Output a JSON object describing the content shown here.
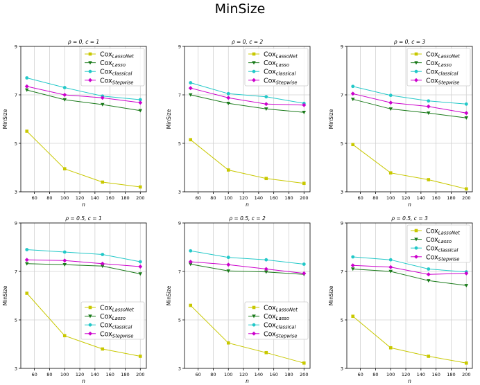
{
  "figure_title": "MinSize",
  "colors": {
    "Cox_LassoNet": "#c8c800",
    "Cox_Lasso": "#1a7a1a",
    "Cox_classical": "#22c8c8",
    "Cox_Stepwise": "#cc00cc"
  },
  "chart_data": [
    {
      "type": "line",
      "title": "ρ = 0, c = 1",
      "xlabel": "n",
      "ylabel": "MinSize",
      "xlim": [
        42,
        208
      ],
      "ylim": [
        3,
        9
      ],
      "xticks": [
        60,
        80,
        100,
        120,
        140,
        160,
        180,
        200
      ],
      "yticks": [
        3,
        5,
        7,
        9
      ],
      "grid": true,
      "legend_position": "upper right",
      "x": [
        50,
        100,
        150,
        200
      ],
      "series": [
        {
          "name": "Cox_LassoNet",
          "values": [
            5.5,
            3.95,
            3.4,
            3.2
          ]
        },
        {
          "name": "Cox_Lasso",
          "values": [
            7.2,
            6.8,
            6.6,
            6.35
          ]
        },
        {
          "name": "Cox_classical",
          "values": [
            7.7,
            7.3,
            6.95,
            6.8
          ]
        },
        {
          "name": "Cox_Stepwise",
          "values": [
            7.35,
            7.0,
            6.88,
            6.68
          ]
        }
      ]
    },
    {
      "type": "line",
      "title": "ρ = 0, c = 2",
      "xlabel": "n",
      "ylabel": "MinSize",
      "xlim": [
        42,
        208
      ],
      "ylim": [
        3,
        9
      ],
      "xticks": [
        60,
        80,
        100,
        120,
        140,
        160,
        180,
        200
      ],
      "yticks": [
        3,
        5,
        7,
        9
      ],
      "grid": true,
      "legend_position": "upper right",
      "x": [
        50,
        100,
        150,
        200
      ],
      "series": [
        {
          "name": "Cox_LassoNet",
          "values": [
            5.15,
            3.9,
            3.55,
            3.35
          ]
        },
        {
          "name": "Cox_Lasso",
          "values": [
            7.0,
            6.65,
            6.42,
            6.28
          ]
        },
        {
          "name": "Cox_classical",
          "values": [
            7.5,
            7.05,
            6.92,
            6.65
          ]
        },
        {
          "name": "Cox_Stepwise",
          "values": [
            7.28,
            6.88,
            6.62,
            6.58
          ]
        }
      ]
    },
    {
      "type": "line",
      "title": "ρ = 0, c = 3",
      "xlabel": "n",
      "ylabel": "MinSize",
      "xlim": [
        42,
        208
      ],
      "ylim": [
        3,
        9
      ],
      "xticks": [
        60,
        80,
        100,
        120,
        140,
        160,
        180,
        200
      ],
      "yticks": [
        3,
        5,
        7,
        9
      ],
      "grid": true,
      "legend_position": "upper right",
      "x": [
        50,
        100,
        150,
        200
      ],
      "series": [
        {
          "name": "Cox_LassoNet",
          "values": [
            4.95,
            3.78,
            3.5,
            3.12
          ]
        },
        {
          "name": "Cox_Lasso",
          "values": [
            6.82,
            6.42,
            6.25,
            6.05
          ]
        },
        {
          "name": "Cox_classical",
          "values": [
            7.35,
            6.98,
            6.75,
            6.62
          ]
        },
        {
          "name": "Cox_Stepwise",
          "values": [
            7.05,
            6.68,
            6.52,
            6.25
          ]
        }
      ]
    },
    {
      "type": "line",
      "title": "ρ = 0.5, c = 1",
      "xlabel": "n",
      "ylabel": "MinSize",
      "xlim": [
        42,
        208
      ],
      "ylim": [
        3,
        9
      ],
      "xticks": [
        60,
        80,
        100,
        120,
        140,
        160,
        180,
        200
      ],
      "yticks": [
        3,
        5,
        7,
        9
      ],
      "grid": true,
      "legend_position": "lower right",
      "x": [
        50,
        100,
        150,
        200
      ],
      "series": [
        {
          "name": "Cox_LassoNet",
          "values": [
            6.1,
            4.35,
            3.8,
            3.5
          ]
        },
        {
          "name": "Cox_Lasso",
          "values": [
            7.32,
            7.28,
            7.22,
            6.9
          ]
        },
        {
          "name": "Cox_classical",
          "values": [
            7.9,
            7.8,
            7.7,
            7.4
          ]
        },
        {
          "name": "Cox_Stepwise",
          "values": [
            7.48,
            7.45,
            7.32,
            7.2
          ]
        }
      ]
    },
    {
      "type": "line",
      "title": "ρ = 0.5, c = 2",
      "xlabel": "n",
      "ylabel": "MinSize",
      "xlim": [
        42,
        208
      ],
      "ylim": [
        3,
        9
      ],
      "xticks": [
        60,
        80,
        100,
        120,
        140,
        160,
        180,
        200
      ],
      "yticks": [
        3,
        5,
        7,
        9
      ],
      "grid": true,
      "legend_position": "lower right",
      "x": [
        50,
        100,
        150,
        200
      ],
      "series": [
        {
          "name": "Cox_LassoNet",
          "values": [
            5.6,
            4.05,
            3.65,
            3.22
          ]
        },
        {
          "name": "Cox_Lasso",
          "values": [
            7.3,
            7.02,
            6.98,
            6.88
          ]
        },
        {
          "name": "Cox_classical",
          "values": [
            7.85,
            7.58,
            7.48,
            7.3
          ]
        },
        {
          "name": "Cox_Stepwise",
          "values": [
            7.4,
            7.28,
            7.1,
            6.92
          ]
        }
      ]
    },
    {
      "type": "line",
      "title": "ρ = 0.5, c = 3",
      "xlabel": "n",
      "ylabel": "MinSize",
      "xlim": [
        42,
        208
      ],
      "ylim": [
        3,
        9
      ],
      "xticks": [
        60,
        80,
        100,
        120,
        140,
        160,
        180,
        200
      ],
      "yticks": [
        3,
        5,
        7,
        9
      ],
      "grid": true,
      "legend_position": "upper right",
      "x": [
        50,
        100,
        150,
        200
      ],
      "series": [
        {
          "name": "Cox_LassoNet",
          "values": [
            5.15,
            3.85,
            3.5,
            3.22
          ]
        },
        {
          "name": "Cox_Lasso",
          "values": [
            7.1,
            7.0,
            6.62,
            6.42
          ]
        },
        {
          "name": "Cox_classical",
          "values": [
            7.6,
            7.48,
            7.1,
            6.98
          ]
        },
        {
          "name": "Cox_Stepwise",
          "values": [
            7.25,
            7.18,
            6.88,
            6.92
          ]
        }
      ]
    }
  ]
}
